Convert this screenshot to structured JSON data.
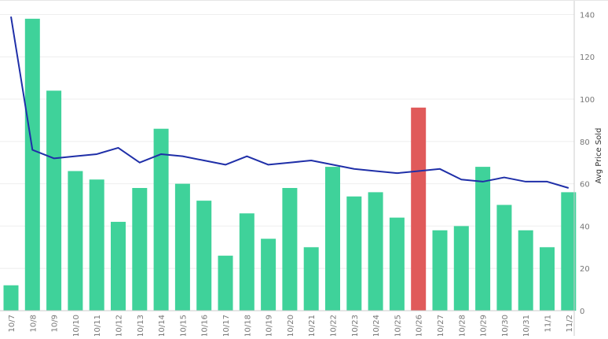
{
  "chart_data": {
    "type": "bar",
    "categories": [
      "10/7",
      "10/8",
      "10/9",
      "10/10",
      "10/11",
      "10/12",
      "10/13",
      "10/14",
      "10/15",
      "10/16",
      "10/17",
      "10/18",
      "10/19",
      "10/20",
      "10/21",
      "10/22",
      "10/23",
      "10/24",
      "10/25",
      "10/26",
      "10/27",
      "10/28",
      "10/29",
      "10/30",
      "10/31",
      "11/1",
      "11/2"
    ],
    "series": [
      {
        "type": "bar",
        "values": [
          12,
          138,
          104,
          66,
          62,
          42,
          58,
          86,
          60,
          52,
          26,
          46,
          34,
          58,
          30,
          68,
          54,
          56,
          44,
          96,
          38,
          40,
          68,
          50,
          38,
          30,
          56
        ],
        "highlight_index": 19
      },
      {
        "type": "line",
        "values": [
          139,
          76,
          72,
          73,
          74,
          77,
          70,
          74,
          73,
          71,
          69,
          73,
          69,
          70,
          71,
          69,
          67,
          66,
          65,
          66,
          67,
          62,
          61,
          63,
          61,
          61,
          58
        ]
      }
    ],
    "title": "",
    "xlabel": "",
    "ylabel": "Avg Price Sold",
    "ylim": [
      0,
      145
    ],
    "yticks": [
      0,
      20,
      40,
      60,
      80,
      100,
      120,
      140
    ],
    "y_axis_side": "right",
    "grid": true,
    "colors": {
      "bar": "#3fd29a",
      "bar_highlight": "#e05a5a",
      "line": "#1f2fa8",
      "grid": "#eeeeee",
      "axis": "#cccccc"
    }
  }
}
